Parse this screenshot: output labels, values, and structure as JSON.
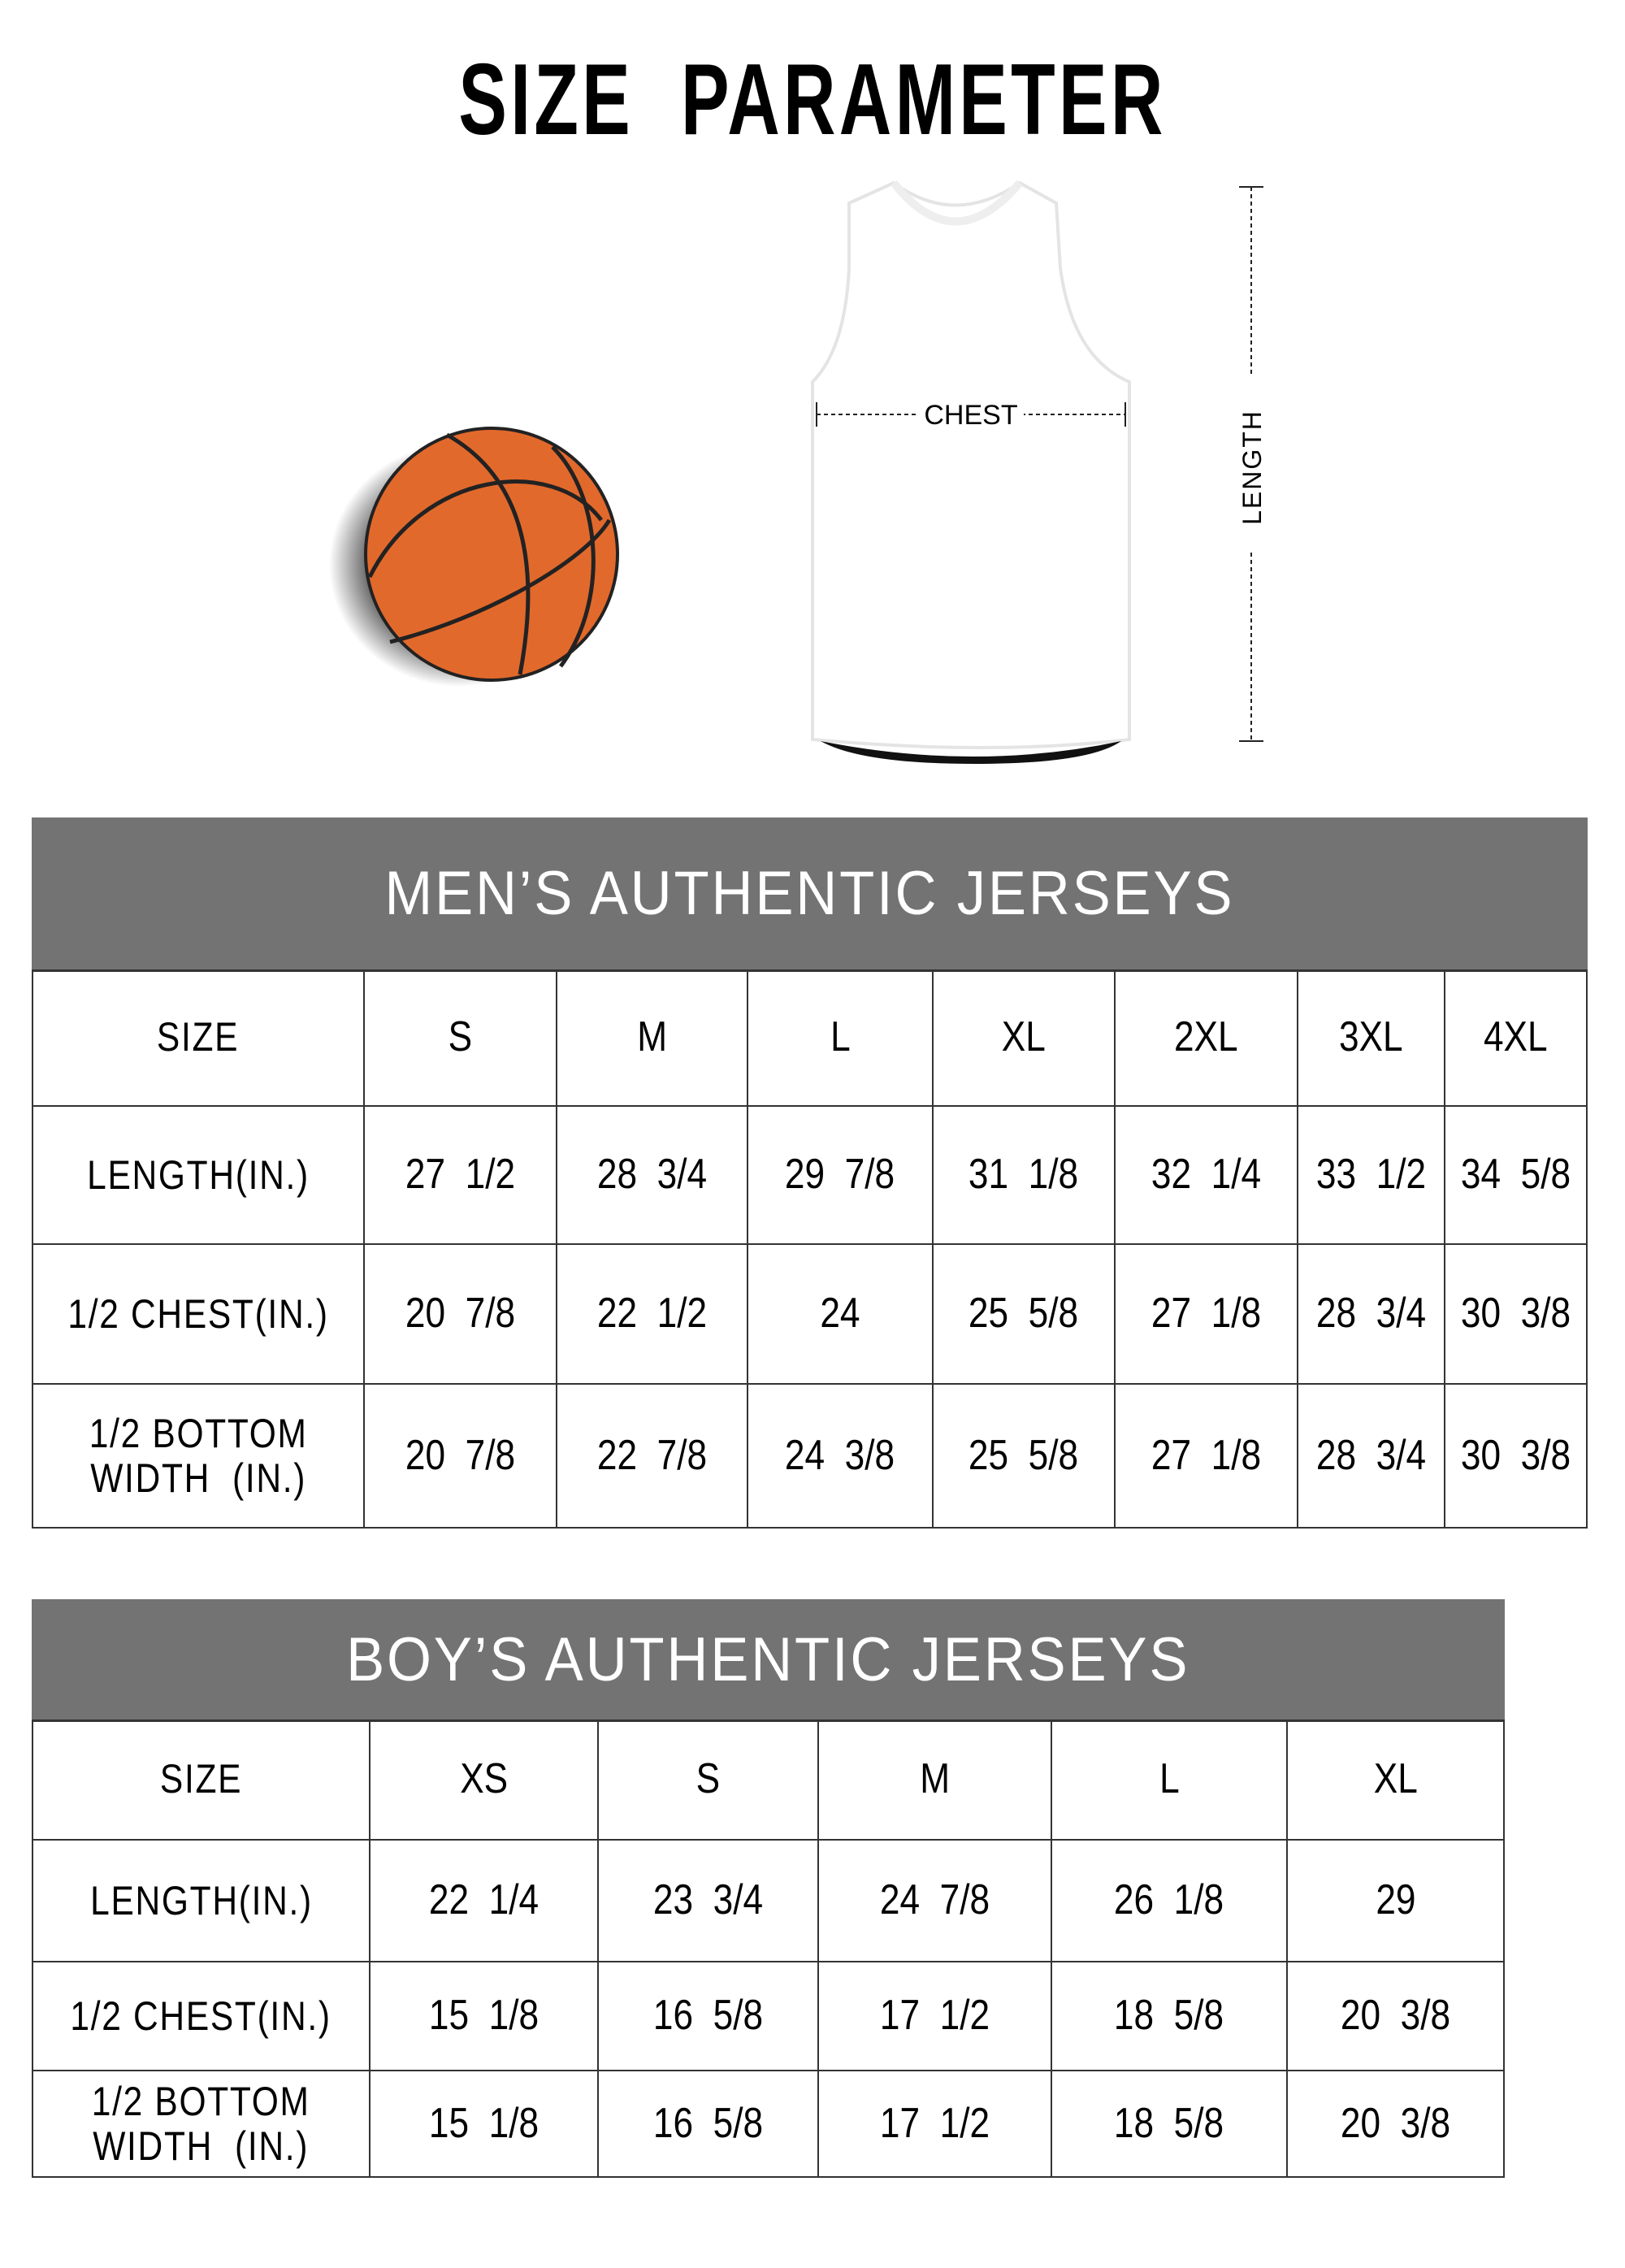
{
  "title": "SIZE PARAMETER",
  "diagram": {
    "chest_label": "CHEST",
    "length_label": "LENGTH",
    "ball_color": "#E2692C"
  },
  "header_band_color": "#737373",
  "mens_table": {
    "title": "MEN’S AUTHENTIC JERSEYS",
    "columns": [
      "SIZE",
      "S",
      "M",
      "L",
      "XL",
      "2XL",
      "3XL",
      "4XL"
    ],
    "rows": [
      [
        "LENGTH(IN.)",
        "27  1/2",
        "28  3/4",
        "29  7/8",
        "31  1/8",
        "32  1/4",
        "33  1/2",
        "34  5/8"
      ],
      [
        "1/2 CHEST(IN.)",
        "20  7/8",
        "22  1/2",
        "24",
        "25  5/8",
        "27  1/8",
        "28  3/4",
        "30  3/8"
      ],
      [
        "1/2 BOTTOM\nWIDTH  (IN.)",
        "20  7/8",
        "22  7/8",
        "24  3/8",
        "25  5/8",
        "27  1/8",
        "28  3/4",
        "30  3/8"
      ]
    ]
  },
  "boys_table": {
    "title": "BOY’S AUTHENTIC JERSEYS",
    "columns": [
      "SIZE",
      "XS",
      "S",
      "M",
      "L",
      "XL"
    ],
    "rows": [
      [
        "LENGTH(IN.)",
        "22  1/4",
        "23  3/4",
        "24  7/8",
        "26  1/8",
        "29"
      ],
      [
        "1/2 CHEST(IN.)",
        "15  1/8",
        "16  5/8",
        "17  1/2",
        "18  5/8",
        "20  3/8"
      ],
      [
        "1/2 BOTTOM\nWIDTH  (IN.)",
        "15  1/8",
        "16  5/8",
        "17  1/2",
        "18  5/8",
        "20  3/8"
      ]
    ]
  }
}
